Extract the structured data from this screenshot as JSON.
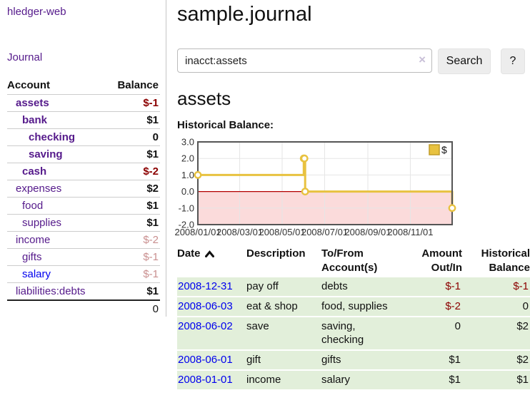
{
  "app": {
    "brand": "hledger-web",
    "nav_journal": "Journal"
  },
  "sidebar": {
    "header": {
      "account": "Account",
      "balance": "Balance"
    },
    "rows": [
      {
        "name": "assets",
        "level": 0,
        "bold": true,
        "amount": "$-1",
        "amount_style": "neg-strong"
      },
      {
        "name": "bank",
        "level": 1,
        "bold": true,
        "amount": "$1",
        "amount_style": "pos"
      },
      {
        "name": "checking",
        "level": 2,
        "bold": true,
        "amount": "0",
        "amount_style": "pos"
      },
      {
        "name": "saving",
        "level": 2,
        "bold": true,
        "amount": "$1",
        "amount_style": "pos"
      },
      {
        "name": "cash",
        "level": 1,
        "bold": true,
        "amount": "$-2",
        "amount_style": "neg-strong"
      },
      {
        "name": "expenses",
        "level": 0,
        "bold": false,
        "amount": "$2",
        "amount_style": "pos"
      },
      {
        "name": "food",
        "level": 1,
        "bold": false,
        "amount": "$1",
        "amount_style": "pos"
      },
      {
        "name": "supplies",
        "level": 1,
        "bold": false,
        "amount": "$1",
        "amount_style": "pos"
      },
      {
        "name": "income",
        "level": 0,
        "bold": false,
        "amount": "$-2",
        "amount_style": "neg-faded"
      },
      {
        "name": "gifts",
        "level": 1,
        "bold": false,
        "amount": "$-1",
        "amount_style": "neg-faded"
      },
      {
        "name": "salary",
        "level": 1,
        "bold": false,
        "unvisited": true,
        "amount": "$-1",
        "amount_style": "neg-faded"
      },
      {
        "name": "liabilities:debts",
        "level": 0,
        "bold": false,
        "amount": "$1",
        "amount_style": "pos"
      }
    ],
    "total": "0"
  },
  "main": {
    "title": "sample.journal",
    "search": {
      "value": "inacct:assets",
      "clear_icon": "×",
      "search_button": "Search",
      "help_button": "?"
    },
    "account_heading": "assets",
    "chart_label": "Historical Balance:"
  },
  "chart_data": {
    "type": "line",
    "step": true,
    "title": "Historical Balance",
    "series": [
      {
        "name": "$",
        "x": [
          "2008-01-01",
          "2008-06-01",
          "2008-06-02",
          "2008-06-03",
          "2008-12-31"
        ],
        "y": [
          1,
          2,
          2,
          0,
          -1
        ]
      }
    ],
    "x_ticks": [
      "2008/01/01",
      "2008/03/01",
      "2008/05/01",
      "2008/07/01",
      "2008/09/01",
      "2008/11/01"
    ],
    "y_ticks": [
      "3.0",
      "2.0",
      "1.0",
      "0.0",
      "-1.0",
      "-2.0"
    ],
    "ylim": [
      -2,
      3
    ],
    "legend": "$",
    "legend_position": "top-right",
    "grid": true,
    "colors": {
      "line": "#e8c240",
      "marker_fill": "#ffffff",
      "negative_fill": "#fbdbdb",
      "zero_line": "#b30000",
      "grid": "#e6e6e6",
      "border": "#555555",
      "legend_box_border": "#c09c28"
    }
  },
  "table": {
    "headers": {
      "date": "Date",
      "description": "Description",
      "tofrom_1": "To/From",
      "tofrom_2": "Account(s)",
      "amount_1": "Amount",
      "amount_2": "Out/In",
      "hist_1": "Historical",
      "hist_2": "Balance"
    },
    "rows": [
      {
        "date": "2008-12-31",
        "description": "pay off",
        "accounts": "debts",
        "amount": "$-1",
        "amount_neg": true,
        "balance": "$-1",
        "balance_neg": true
      },
      {
        "date": "2008-06-03",
        "description": "eat & shop",
        "accounts": "food, supplies",
        "amount": "$-2",
        "amount_neg": true,
        "balance": "0",
        "balance_neg": false
      },
      {
        "date": "2008-06-02",
        "description": "save",
        "accounts": "saving, checking",
        "amount": "0",
        "amount_neg": false,
        "balance": "$2",
        "balance_neg": false
      },
      {
        "date": "2008-06-01",
        "description": "gift",
        "accounts": "gifts",
        "amount": "$1",
        "amount_neg": false,
        "balance": "$2",
        "balance_neg": false
      },
      {
        "date": "2008-01-01",
        "description": "income",
        "accounts": "salary",
        "amount": "$1",
        "amount_neg": false,
        "balance": "$1",
        "balance_neg": false
      }
    ]
  }
}
